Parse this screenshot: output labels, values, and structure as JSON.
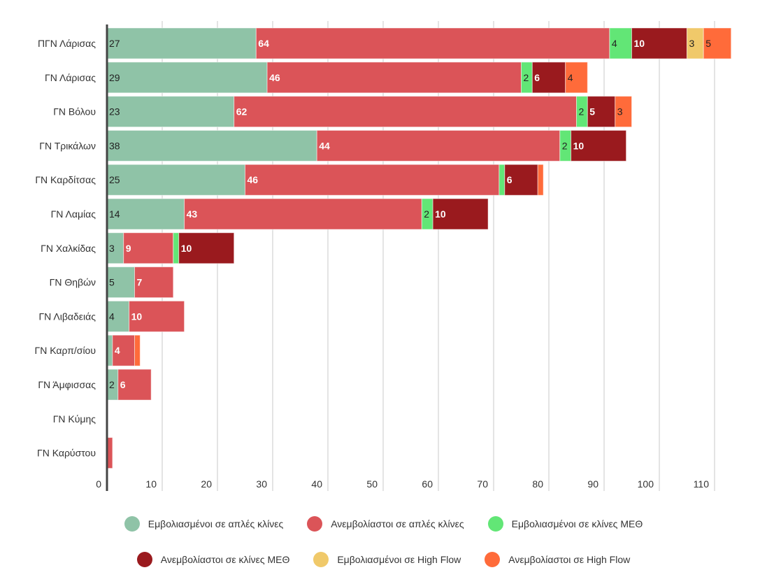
{
  "chart_data": {
    "type": "bar",
    "orientation": "horizontal",
    "stacked": true,
    "categories": [
      "ΠΓΝ Λάρισας",
      "ΓΝ Λάρισας",
      "ΓΝ Βόλου",
      "ΓΝ Τρικάλων",
      "ΓΝ Καρδίτσας",
      "ΓΝ Λαμίας",
      "ΓΝ Χαλκίδας",
      "ΓΝ Θηβών",
      "ΓΝ Λιβαδειάς",
      "ΓΝ Καρπ/σίου",
      "ΓΝ Άμφισσας",
      "ΓΝ Κύμης",
      "ΓΝ Καρύστου"
    ],
    "series": [
      {
        "name": "Εμβολιασμένοι σε απλές κλίνες",
        "color": "#8fc3a7",
        "values": [
          27,
          29,
          23,
          38,
          25,
          14,
          3,
          5,
          4,
          1,
          2,
          0,
          0
        ]
      },
      {
        "name": "Ανεμβολίαστοι σε απλές κλίνες",
        "color": "#db5458",
        "values": [
          64,
          46,
          62,
          44,
          46,
          43,
          9,
          7,
          10,
          4,
          6,
          0,
          1
        ]
      },
      {
        "name": "Εμβολιασμένοι σε κλίνες ΜΕΘ",
        "color": "#62e676",
        "values": [
          4,
          2,
          2,
          2,
          1,
          2,
          1,
          0,
          0,
          0,
          0,
          0,
          0
        ]
      },
      {
        "name": "Ανεμβολίαστοι σε κλίνες ΜΕΘ",
        "color": "#9a1a1e",
        "values": [
          10,
          6,
          5,
          10,
          6,
          10,
          10,
          0,
          0,
          0,
          0,
          0,
          0
        ]
      },
      {
        "name": "Εμβολιασμένοι σε High Flow",
        "color": "#f0c96a",
        "values": [
          3,
          0,
          0,
          0,
          0,
          0,
          0,
          0,
          0,
          0,
          0,
          0,
          0
        ]
      },
      {
        "name": "Ανεμβολίαστοι σε High Flow",
        "color": "#ff6b3a",
        "values": [
          5,
          4,
          3,
          0,
          1,
          0,
          0,
          0,
          0,
          1,
          0,
          0,
          0
        ]
      }
    ],
    "xlim": [
      0,
      115
    ],
    "xticks": [
      0,
      10,
      20,
      30,
      40,
      50,
      60,
      70,
      80,
      90,
      100,
      110
    ],
    "grid": true,
    "legend": "bottom",
    "data_labels": true
  }
}
